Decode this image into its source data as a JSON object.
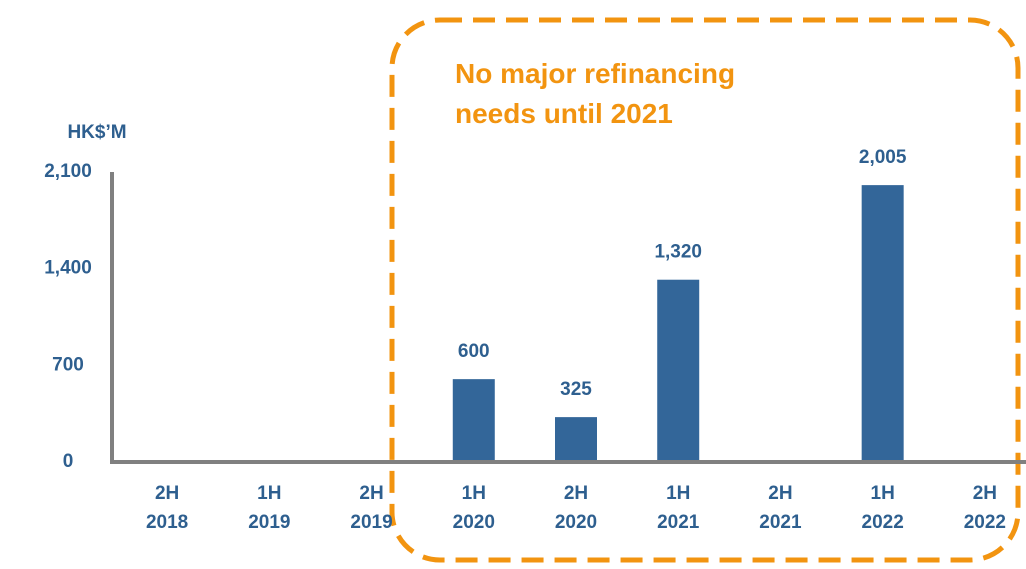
{
  "chart_data": {
    "type": "bar",
    "y_axis_label": "HK$’M",
    "annotation": [
      "No major refinancing",
      "needs until 2021"
    ],
    "categories": [
      [
        "2H",
        "2018"
      ],
      [
        "1H",
        "2019"
      ],
      [
        "2H",
        "2019"
      ],
      [
        "1H",
        "2020"
      ],
      [
        "2H",
        "2020"
      ],
      [
        "1H",
        "2021"
      ],
      [
        "2H",
        "2021"
      ],
      [
        "1H",
        "2022"
      ],
      [
        "2H",
        "2022"
      ]
    ],
    "values": [
      null,
      null,
      null,
      600,
      325,
      1320,
      null,
      2005,
      null
    ],
    "value_labels": [
      null,
      null,
      null,
      "600",
      "325",
      "1,320",
      null,
      "2,005",
      null
    ],
    "color": "#336699",
    "ylim": [
      0,
      2100
    ],
    "yticks": [
      0,
      {
        "value": 700,
        "label": "700"
      },
      {
        "value": 1400,
        "label": "1,400"
      },
      {
        "value": 2100,
        "label": "2,100"
      }
    ],
    "grid": false
  }
}
